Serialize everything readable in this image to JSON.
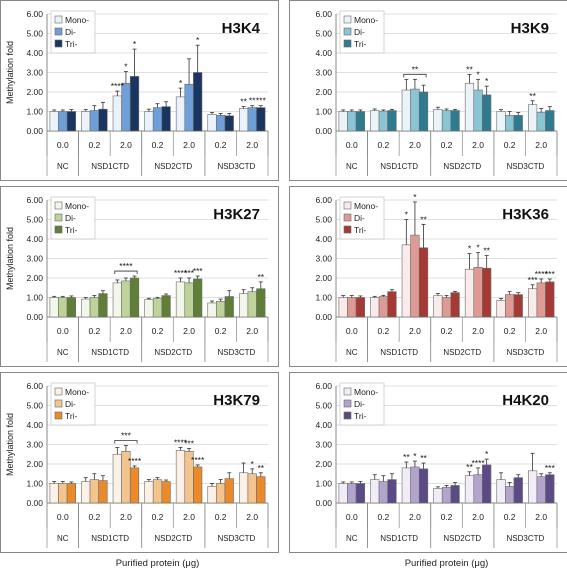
{
  "chart_data": [
    {
      "type": "bar",
      "title": "H3K4",
      "ylabel": "Methylation fold",
      "xlabel": "",
      "ylim": [
        0,
        6
      ],
      "yticks": [
        "0.00",
        "1.00",
        "2.00",
        "3.00",
        "4.00",
        "5.00",
        "6.00"
      ],
      "categories": [
        "0.0",
        "0.2",
        "2.0",
        "0.2",
        "2.0",
        "0.2",
        "2.0"
      ],
      "groups": [
        "NC",
        "NSD1CTD",
        "NSD2CTD",
        "NSD3CTD"
      ],
      "legend_position": "top-left",
      "series": [
        {
          "name": "Mono-",
          "color": "#eaf2fb",
          "values": [
            1.0,
            1.0,
            1.8,
            1.0,
            1.75,
            0.85,
            1.15
          ],
          "errors": [
            0.08,
            0.1,
            0.25,
            0.12,
            0.45,
            0.1,
            0.1
          ]
        },
        {
          "name": "Di-",
          "color": "#6f9fd8",
          "values": [
            1.0,
            1.05,
            2.45,
            1.2,
            2.4,
            0.8,
            1.2
          ],
          "errors": [
            0.08,
            0.25,
            0.6,
            0.2,
            1.3,
            0.1,
            0.1
          ]
        },
        {
          "name": "Tri-",
          "color": "#1a3560",
          "values": [
            1.0,
            1.12,
            2.8,
            1.25,
            3.0,
            0.78,
            1.2
          ],
          "errors": [
            0.1,
            0.35,
            1.4,
            0.25,
            1.4,
            0.12,
            0.1
          ]
        }
      ],
      "annotations": [
        {
          "category": 2,
          "series": 0,
          "text": "****"
        },
        {
          "category": 2,
          "series": 1,
          "text": "*"
        },
        {
          "category": 2,
          "series": 2,
          "text": "*"
        },
        {
          "category": 4,
          "series": 0,
          "text": "*"
        },
        {
          "category": 4,
          "series": 2,
          "text": "*"
        },
        {
          "category": 6,
          "series": 0,
          "text": "**"
        },
        {
          "category": 6,
          "series": 1,
          "text": "**"
        },
        {
          "category": 6,
          "series": 2,
          "text": "***"
        }
      ]
    },
    {
      "type": "bar",
      "title": "H3K9",
      "ylabel": "",
      "xlabel": "",
      "ylim": [
        0,
        6
      ],
      "yticks": [
        "0.00",
        "1.00",
        "2.00",
        "3.00",
        "4.00",
        "5.00",
        "6.00"
      ],
      "categories": [
        "0.0",
        "0.2",
        "2.0",
        "0.2",
        "2.0",
        "0.2",
        "2.0"
      ],
      "groups": [
        "NC",
        "NSD1CTD",
        "NSD2CTD",
        "NSD3CTD"
      ],
      "legend_position": "top-left",
      "series": [
        {
          "name": "Mono-",
          "color": "#eaf4f8",
          "values": [
            1.0,
            1.05,
            2.1,
            1.1,
            2.45,
            1.0,
            1.35
          ],
          "errors": [
            0.08,
            0.08,
            0.55,
            0.12,
            0.45,
            0.1,
            0.2
          ]
        },
        {
          "name": "Di-",
          "color": "#8ac5d6",
          "values": [
            1.0,
            1.02,
            2.15,
            1.05,
            2.1,
            0.8,
            0.95
          ],
          "errors": [
            0.08,
            0.06,
            0.5,
            0.08,
            0.55,
            0.2,
            0.2
          ]
        },
        {
          "name": "Tri-",
          "color": "#2f7a8e",
          "values": [
            1.0,
            1.05,
            2.0,
            1.05,
            1.85,
            0.8,
            1.05
          ],
          "errors": [
            0.08,
            0.06,
            0.35,
            0.06,
            0.45,
            0.15,
            0.2
          ]
        }
      ],
      "annotations": [
        {
          "category": 2,
          "series": 1,
          "text": "**",
          "bracket": true
        },
        {
          "category": 4,
          "series": 0,
          "text": "**"
        },
        {
          "category": 4,
          "series": 1,
          "text": "*"
        },
        {
          "category": 4,
          "series": 2,
          "text": "*"
        },
        {
          "category": 6,
          "series": 0,
          "text": "**"
        }
      ]
    },
    {
      "type": "bar",
      "title": "H3K27",
      "ylabel": "Methylation fold",
      "xlabel": "",
      "ylim": [
        0,
        6
      ],
      "yticks": [
        "0.00",
        "1.00",
        "2.00",
        "3.00",
        "4.00",
        "5.00",
        "6.00"
      ],
      "categories": [
        "0.0",
        "0.2",
        "2.0",
        "0.2",
        "2.0",
        "0.2",
        "2.0"
      ],
      "groups": [
        "NC",
        "NSD1CTD",
        "NSD2CTD",
        "NSD3CTD"
      ],
      "legend_position": "top-left",
      "series": [
        {
          "name": "Mono-",
          "color": "#f2f7ea",
          "values": [
            1.0,
            0.92,
            1.75,
            0.9,
            1.8,
            0.72,
            1.2
          ],
          "errors": [
            0.06,
            0.08,
            0.15,
            0.06,
            0.2,
            0.1,
            0.2
          ]
        },
        {
          "name": "Di-",
          "color": "#bdd39a",
          "values": [
            1.0,
            1.0,
            1.85,
            0.95,
            1.75,
            0.8,
            1.3
          ],
          "errors": [
            0.06,
            0.1,
            0.15,
            0.06,
            0.25,
            0.12,
            0.2
          ]
        },
        {
          "name": "Tri-",
          "color": "#5f7f36",
          "values": [
            1.0,
            1.2,
            2.0,
            1.1,
            1.95,
            1.05,
            1.45
          ],
          "errors": [
            0.08,
            0.15,
            0.1,
            0.08,
            0.15,
            0.3,
            0.35
          ]
        }
      ],
      "annotations": [
        {
          "category": 2,
          "series": 1,
          "text": "****",
          "bracket": true
        },
        {
          "category": 4,
          "series": 0,
          "text": "****"
        },
        {
          "category": 4,
          "series": 1,
          "text": "***"
        },
        {
          "category": 4,
          "series": 2,
          "text": "***"
        },
        {
          "category": 6,
          "series": 2,
          "text": "**"
        }
      ]
    },
    {
      "type": "bar",
      "title": "H3K36",
      "ylabel": "",
      "xlabel": "",
      "ylim": [
        0,
        6
      ],
      "yticks": [
        "0.00",
        "1.00",
        "2.00",
        "3.00",
        "4.00",
        "5.00",
        "6.00"
      ],
      "categories": [
        "0.0",
        "0.2",
        "2.0",
        "0.2",
        "2.0",
        "0.2",
        "2.0"
      ],
      "groups": [
        "NC",
        "NSD1CTD",
        "NSD2CTD",
        "NSD3CTD"
      ],
      "legend_position": "top-left",
      "series": [
        {
          "name": "Mono-",
          "color": "#fbeaea",
          "values": [
            1.0,
            1.0,
            3.7,
            1.1,
            2.45,
            0.85,
            1.45
          ],
          "errors": [
            0.1,
            0.06,
            1.3,
            0.1,
            0.8,
            0.1,
            0.2
          ]
        },
        {
          "name": "Di-",
          "color": "#e09a94",
          "values": [
            1.0,
            1.05,
            4.2,
            1.0,
            2.55,
            1.15,
            1.75
          ],
          "errors": [
            0.1,
            0.06,
            1.7,
            0.1,
            0.75,
            0.15,
            0.2
          ]
        },
        {
          "name": "Tri-",
          "color": "#a53a34",
          "values": [
            1.0,
            1.3,
            3.55,
            1.25,
            2.5,
            1.15,
            1.8
          ],
          "errors": [
            0.08,
            0.1,
            1.2,
            0.06,
            0.65,
            0.1,
            0.15
          ]
        }
      ],
      "annotations": [
        {
          "category": 2,
          "series": 0,
          "text": "*"
        },
        {
          "category": 2,
          "series": 1,
          "text": "*"
        },
        {
          "category": 2,
          "series": 2,
          "text": "**"
        },
        {
          "category": 4,
          "series": 0,
          "text": "*"
        },
        {
          "category": 4,
          "series": 1,
          "text": "*"
        },
        {
          "category": 4,
          "series": 2,
          "text": "**"
        },
        {
          "category": 6,
          "series": 0,
          "text": "***"
        },
        {
          "category": 6,
          "series": 1,
          "text": "****"
        },
        {
          "category": 6,
          "series": 2,
          "text": "***"
        }
      ]
    },
    {
      "type": "bar",
      "title": "H3K79",
      "ylabel": "Methylation fold",
      "xlabel": "Purified protein (μg)",
      "ylim": [
        0,
        6
      ],
      "yticks": [
        "0.00",
        "1.00",
        "2.00",
        "3.00",
        "4.00",
        "5.00",
        "6.00"
      ],
      "categories": [
        "0.0",
        "0.2",
        "2.0",
        "0.2",
        "2.0",
        "0.2",
        "2.0"
      ],
      "groups": [
        "NC",
        "NSD1CTD",
        "NSD2CTD",
        "NSD3CTD"
      ],
      "legend_position": "top-left",
      "series": [
        {
          "name": "Mono-",
          "color": "#fdf0e4",
          "values": [
            1.0,
            1.1,
            2.5,
            1.1,
            2.7,
            0.85,
            1.55
          ],
          "errors": [
            0.1,
            0.2,
            0.35,
            0.1,
            0.15,
            0.15,
            0.5
          ]
        },
        {
          "name": "Di-",
          "color": "#f4c48e",
          "values": [
            1.0,
            1.2,
            2.65,
            1.2,
            2.65,
            1.0,
            1.5
          ],
          "errors": [
            0.1,
            0.3,
            0.3,
            0.1,
            0.15,
            0.2,
            0.25
          ]
        },
        {
          "name": "Tri-",
          "color": "#ea8a2a",
          "values": [
            1.0,
            1.15,
            1.8,
            1.1,
            1.85,
            1.25,
            1.35
          ],
          "errors": [
            0.08,
            0.25,
            0.1,
            0.08,
            0.1,
            0.3,
            0.2
          ]
        }
      ],
      "annotations": [
        {
          "category": 2,
          "series": 0,
          "text": "***",
          "bracket": true
        },
        {
          "category": 2,
          "series": 2,
          "text": "****"
        },
        {
          "category": 4,
          "series": 0,
          "text": "****"
        },
        {
          "category": 4,
          "series": 1,
          "text": "***"
        },
        {
          "category": 4,
          "series": 2,
          "text": "****"
        },
        {
          "category": 6,
          "series": 1,
          "text": "*"
        },
        {
          "category": 6,
          "series": 2,
          "text": "**"
        }
      ]
    },
    {
      "type": "bar",
      "title": "H4K20",
      "ylabel": "",
      "xlabel": "Purified protein (μg)",
      "ylim": [
        0,
        6
      ],
      "yticks": [
        "0.00",
        "1.00",
        "2.00",
        "3.00",
        "4.00",
        "5.00",
        "6.00"
      ],
      "categories": [
        "0.0",
        "0.2",
        "2.0",
        "0.2",
        "2.0",
        "0.2",
        "2.0"
      ],
      "groups": [
        "NC",
        "NSD1CTD",
        "NSD2CTD",
        "NSD3CTD"
      ],
      "legend_position": "top-left",
      "series": [
        {
          "name": "Mono-",
          "color": "#f1edf6",
          "values": [
            1.0,
            1.2,
            1.8,
            0.75,
            1.4,
            1.2,
            1.65
          ],
          "errors": [
            0.08,
            0.25,
            0.3,
            0.08,
            0.2,
            0.35,
            0.9
          ]
        },
        {
          "name": "Di-",
          "color": "#b3a4cd",
          "values": [
            1.0,
            1.1,
            1.85,
            0.8,
            1.45,
            0.85,
            1.35
          ],
          "errors": [
            0.08,
            0.3,
            0.3,
            0.1,
            0.35,
            0.2,
            0.15
          ]
        },
        {
          "name": "Tri-",
          "color": "#5b4a86",
          "values": [
            1.0,
            1.2,
            1.75,
            0.9,
            1.95,
            1.3,
            1.45
          ],
          "errors": [
            0.1,
            0.3,
            0.3,
            0.15,
            0.3,
            0.15,
            0.1
          ]
        }
      ],
      "annotations": [
        {
          "category": 2,
          "series": 0,
          "text": "**"
        },
        {
          "category": 2,
          "series": 1,
          "text": "*"
        },
        {
          "category": 2,
          "series": 2,
          "text": "**"
        },
        {
          "category": 4,
          "series": 0,
          "text": "**"
        },
        {
          "category": 4,
          "series": 1,
          "text": "****"
        },
        {
          "category": 4,
          "series": 2,
          "text": "*"
        },
        {
          "category": 6,
          "series": 2,
          "text": "***"
        }
      ]
    }
  ]
}
